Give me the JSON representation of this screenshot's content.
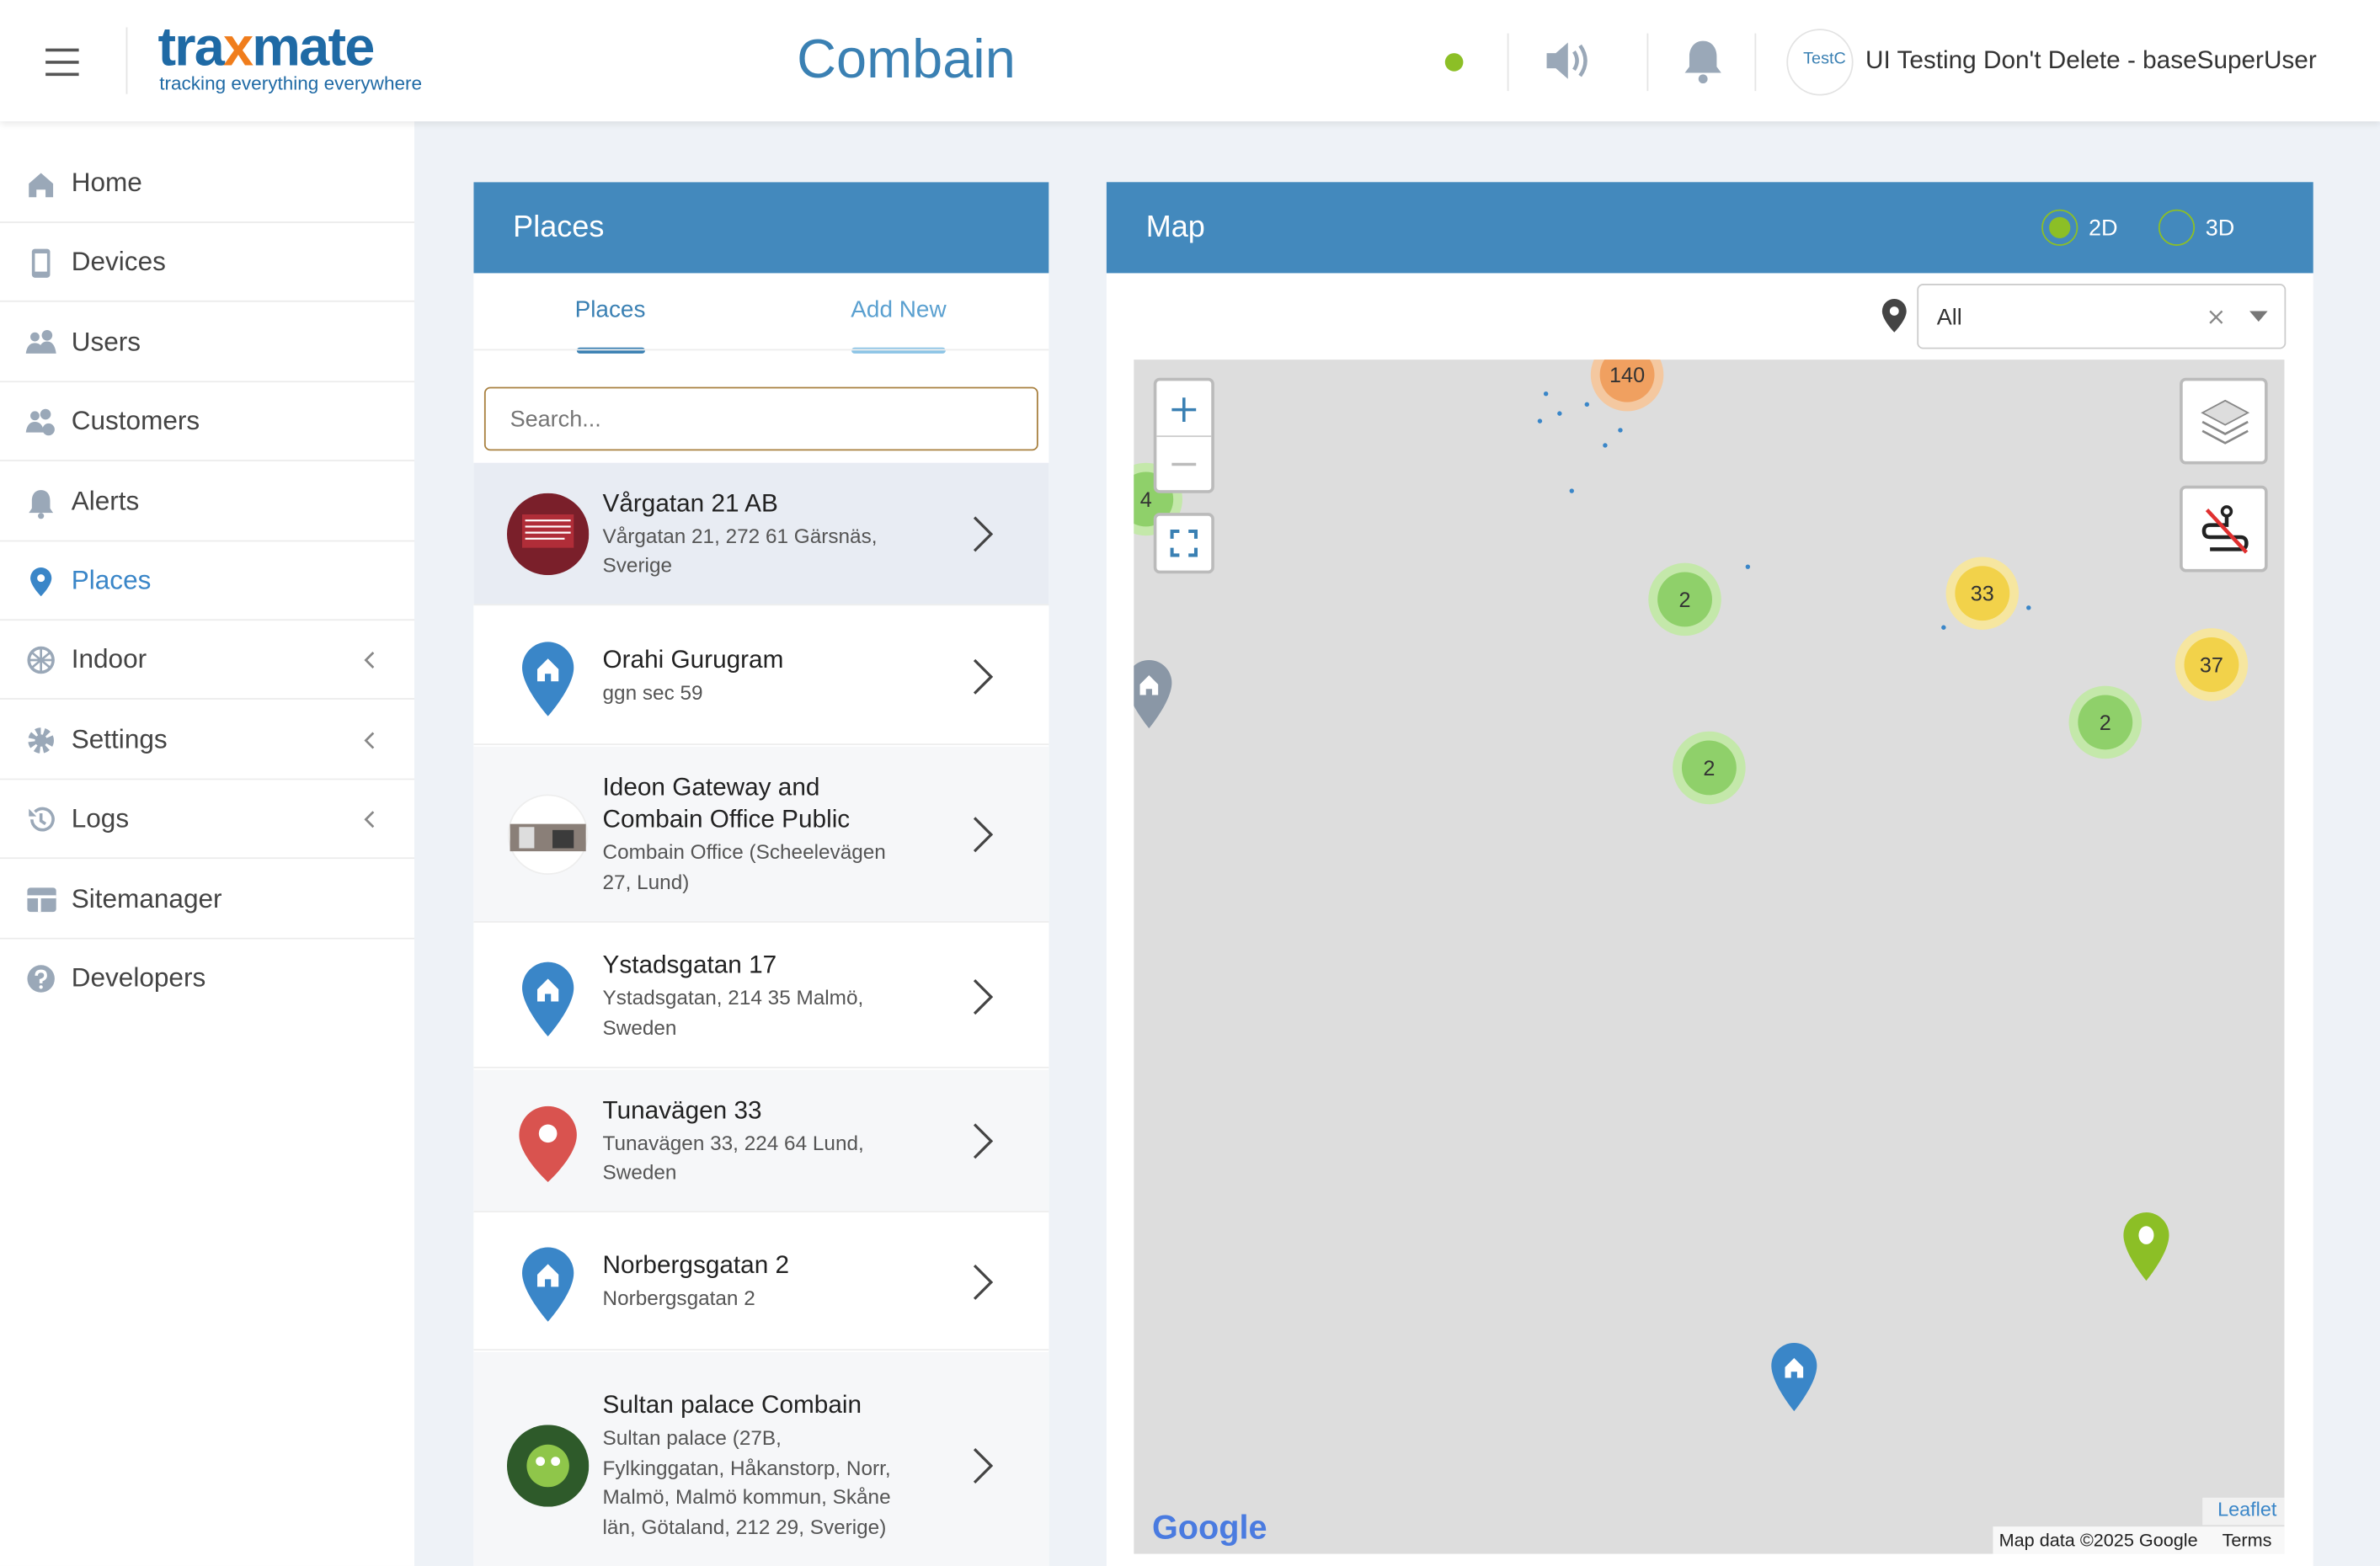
{
  "header": {
    "logo": "traxmate",
    "tagline": "tracking everything everywhere",
    "title": "Combain",
    "org_badge": "TestC",
    "user": "UI Testing Don't Delete - baseSuperUser"
  },
  "sidebar": {
    "items": [
      {
        "label": "Home"
      },
      {
        "label": "Devices"
      },
      {
        "label": "Users"
      },
      {
        "label": "Customers"
      },
      {
        "label": "Alerts"
      },
      {
        "label": "Places",
        "active": true
      },
      {
        "label": "Indoor",
        "expandable": true
      },
      {
        "label": "Settings",
        "expandable": true
      },
      {
        "label": "Logs",
        "expandable": true
      },
      {
        "label": "Sitemanager"
      },
      {
        "label": "Developers"
      }
    ]
  },
  "places": {
    "title": "Places",
    "tabs": [
      "Places",
      "Add New"
    ],
    "search_placeholder": "Search...",
    "items": [
      {
        "name": "Vårgatan 21 AB",
        "address": "Vårgatan 21, 272 61 Gärsnäs, Sverige"
      },
      {
        "name": "Orahi Gurugram",
        "address": "ggn sec 59"
      },
      {
        "name": "Ideon Gateway and Combain Office Public",
        "address": "Combain Office (Scheelevägen 27, Lund)"
      },
      {
        "name": "Ystadsgatan 17",
        "address": "Ystadsgatan, 214 35 Malmö, Sweden"
      },
      {
        "name": "Tunavägen 33",
        "address": "Tunavägen 33, 224 64 Lund, Sweden"
      },
      {
        "name": "Norbergsgatan 2",
        "address": "Norbergsgatan 2"
      },
      {
        "name": "Sultan palace Combain",
        "address": "Sultan palace (27B, Fylkinggatan, Håkanstorp, Norr, Malmö, Malmö kommun, Skåne län, Götaland, 212 29, Sverige)"
      }
    ]
  },
  "map": {
    "title": "Map",
    "modes": [
      "2D",
      "3D"
    ],
    "filter": "All",
    "clusters": [
      {
        "count": 140
      },
      {
        "count": 4
      },
      {
        "count": 2
      },
      {
        "count": 33
      },
      {
        "count": 37
      },
      {
        "count": 2
      },
      {
        "count": 2
      }
    ],
    "attribution": {
      "logo": "Google",
      "leaflet": "Leaflet",
      "data": "Map data ©2025 Google",
      "terms": "Terms"
    }
  }
}
